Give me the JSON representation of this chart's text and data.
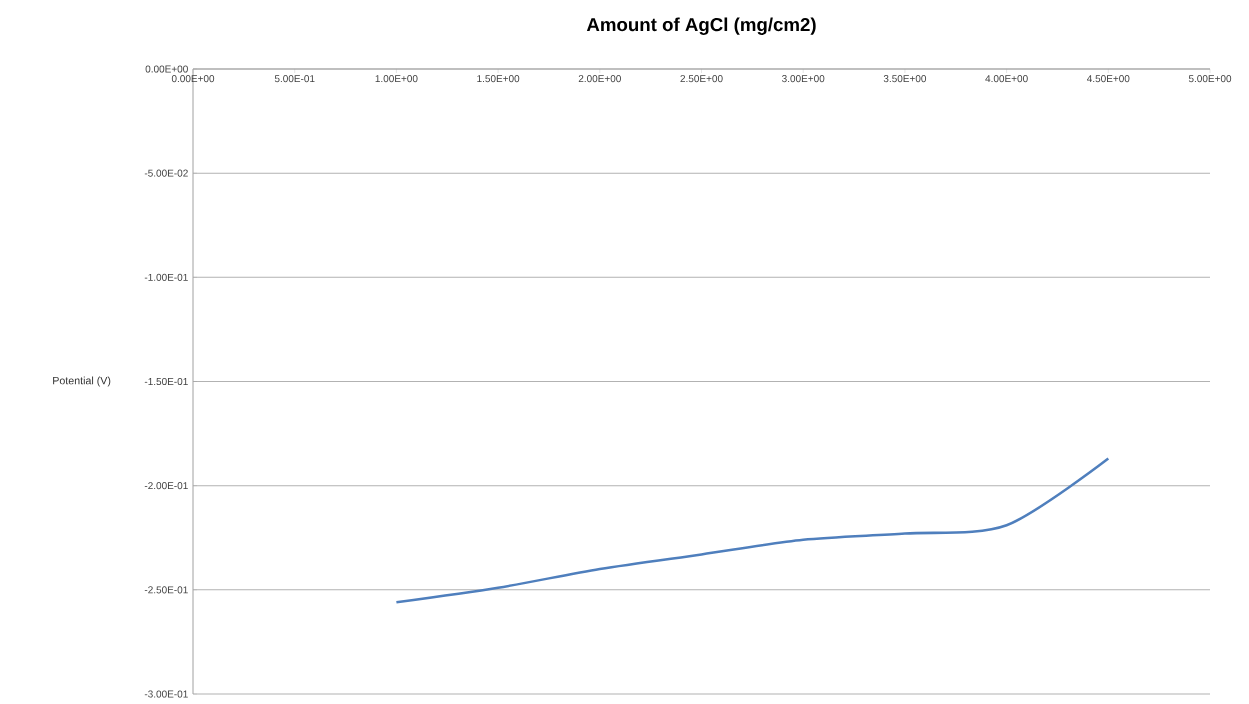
{
  "chart_data": {
    "type": "line",
    "xlabel": "Amount of AgCl (mg/cm2)",
    "ylabel": "Potential (V)",
    "x": [
      1.0,
      1.5,
      2.0,
      2.5,
      3.0,
      3.5,
      4.0,
      4.5
    ],
    "series": [
      {
        "color": "#4f7fbd",
        "values": [
          -0.256,
          -0.249,
          -0.24,
          -0.233,
          -0.226,
          -0.223,
          -0.219,
          -0.187
        ]
      }
    ],
    "xlim": [
      0,
      5
    ],
    "xticks": [
      {
        "value": 0,
        "label": "0.00E+00"
      },
      {
        "value": 0.5,
        "label": "5.00E-01"
      },
      {
        "value": 1,
        "label": "1.00E+00"
      },
      {
        "value": 1.5,
        "label": "1.50E+00"
      },
      {
        "value": 2,
        "label": "2.00E+00"
      },
      {
        "value": 2.5,
        "label": "2.50E+00"
      },
      {
        "value": 3,
        "label": "3.00E+00"
      },
      {
        "value": 3.5,
        "label": "3.50E+00"
      },
      {
        "value": 4,
        "label": "4.00E+00"
      },
      {
        "value": 4.5,
        "label": "4.50E+00"
      },
      {
        "value": 5,
        "label": "5.00E+00"
      }
    ],
    "ylim": [
      -0.3,
      0
    ],
    "yticks": [
      {
        "value": 0,
        "label": "0.00E+00"
      },
      {
        "value": -0.05,
        "label": "-5.00E-02"
      },
      {
        "value": -0.1,
        "label": "-1.00E-01"
      },
      {
        "value": -0.15,
        "label": "-1.50E-01"
      },
      {
        "value": -0.2,
        "label": "-2.00E-01"
      },
      {
        "value": -0.25,
        "label": "-2.50E-01"
      },
      {
        "value": -0.3,
        "label": "-3.00E-01"
      }
    ],
    "grid": "y",
    "marker": "none",
    "line_style": "solid"
  }
}
